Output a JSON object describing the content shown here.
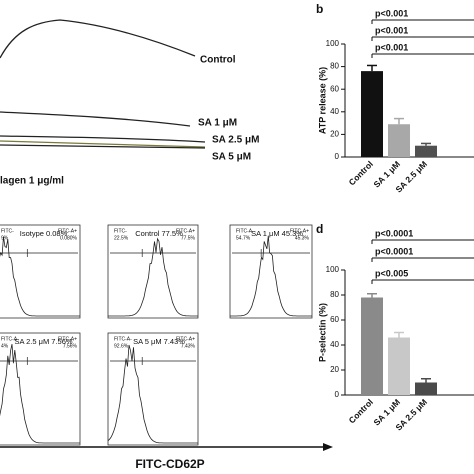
{
  "aggregation": {
    "traces": [
      {
        "label": "Control"
      },
      {
        "label": "SA 1 μM"
      },
      {
        "label": "SA 2.5 μM"
      },
      {
        "label": "SA 5 μM"
      }
    ],
    "agonist": "lagen 1 μg/ml"
  },
  "flow": {
    "axis_label": "FITC-CD62P",
    "panels": [
      {
        "title": "Isotype 0.08%",
        "neg_gate": "FITC-",
        "neg_pct": "9%",
        "pos_gate": "FITC-A+",
        "pos_pct": "0.080%"
      },
      {
        "title": "Control 77.5%",
        "neg_gate": "FITC-",
        "neg_pct": "22.5%",
        "pos_gate": "FITC-A+",
        "pos_pct": "77.5%"
      },
      {
        "title": "SA 1 μM  45.3%",
        "neg_gate": "FITC-A-",
        "neg_pct": "54.7%",
        "pos_gate": "FITC-A+",
        "pos_pct": "45.3%"
      },
      {
        "title": "SA 2.5 μM  7.56%",
        "neg_gate": "FITC-A",
        "neg_pct": "4%",
        "pos_gate": "FITC-A+",
        "pos_pct": "7.56%"
      },
      {
        "title": "SA 5 μM  7.43%",
        "neg_gate": "FITC-A-",
        "neg_pct": "92.6%",
        "pos_gate": "FITC-A+",
        "pos_pct": "7.43%"
      }
    ]
  },
  "chart_data": [
    {
      "type": "bar",
      "panel": "b",
      "ylabel": "ATP release (%)",
      "categories": [
        "Control",
        "SA 1 μM",
        "SA 2.5 μM"
      ],
      "values": [
        76,
        29,
        10
      ],
      "errors": [
        5,
        5,
        2
      ],
      "colors": [
        "#111111",
        "#a8a8a8",
        "#505050"
      ],
      "ylim": [
        0,
        100
      ],
      "yticks": [
        0,
        20,
        40,
        60,
        80,
        100
      ],
      "comparisons": [
        "p<0.001",
        "p<0.001",
        "p<0.001"
      ]
    },
    {
      "type": "bar",
      "panel": "d",
      "ylabel": "P-selectin (%)",
      "categories": [
        "Control",
        "SA 1 μM",
        "SA 2.5 μM"
      ],
      "values": [
        78,
        46,
        10
      ],
      "errors": [
        3,
        4,
        3
      ],
      "colors": [
        "#8a8a8a",
        "#c8c8c8",
        "#4a4a4a"
      ],
      "ylim": [
        0,
        100
      ],
      "yticks": [
        0,
        20,
        40,
        60,
        80,
        100
      ],
      "comparisons": [
        "p<0.0001",
        "p<0.0001",
        "p<0.005"
      ]
    }
  ]
}
